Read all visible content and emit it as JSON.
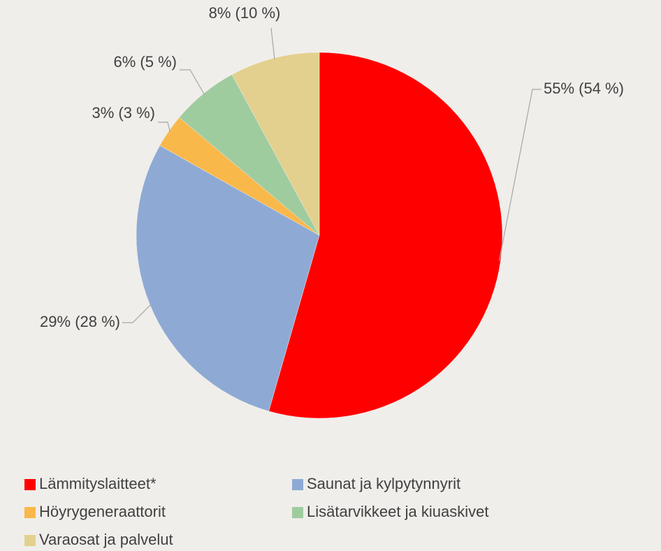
{
  "chart_data": {
    "type": "pie",
    "categories": [
      "Lämmityslaitteet*",
      "Saunat ja kylpytynnyrit",
      "Höyrygeneraattorit",
      "Lisätarvikkeet ja kiuaskivet",
      "Varaosat ja palvelut"
    ],
    "values": [
      55,
      29,
      3,
      6,
      8
    ],
    "value_labels": [
      "55% (54 %)",
      "29% (28 %)",
      "3% (3 %)",
      "6% (5 %)",
      "8% (10 %)"
    ],
    "colors": [
      "#ff0000",
      "#8eaad4",
      "#f9b84a",
      "#9fcc9f",
      "#e3d08e"
    ]
  }
}
